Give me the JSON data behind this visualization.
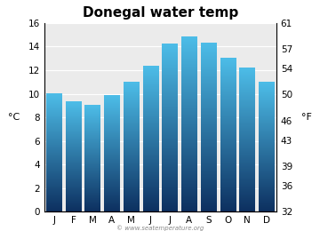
{
  "title": "Donegal water temp",
  "months": [
    "J",
    "F",
    "M",
    "A",
    "M",
    "J",
    "J",
    "A",
    "S",
    "O",
    "N",
    "D"
  ],
  "temps_c": [
    10.0,
    9.3,
    9.0,
    9.8,
    11.0,
    12.3,
    14.2,
    14.8,
    14.3,
    13.0,
    12.2,
    11.0
  ],
  "ylim_c": [
    0,
    16
  ],
  "yticks_c": [
    0,
    2,
    4,
    6,
    8,
    10,
    12,
    14,
    16
  ],
  "yticks_f": [
    32,
    36,
    39,
    43,
    46,
    50,
    54,
    57,
    61
  ],
  "ylabel_left": "°C",
  "ylabel_right": "°F",
  "bar_color_top": "#4dbde8",
  "bar_color_bottom": "#0d3060",
  "bg_plot": "#ebebeb",
  "bg_fig": "#ffffff",
  "watermark": "© www.seatemperature.org",
  "title_fontsize": 11,
  "tick_fontsize": 7.5,
  "label_fontsize": 8,
  "bar_width": 0.82
}
